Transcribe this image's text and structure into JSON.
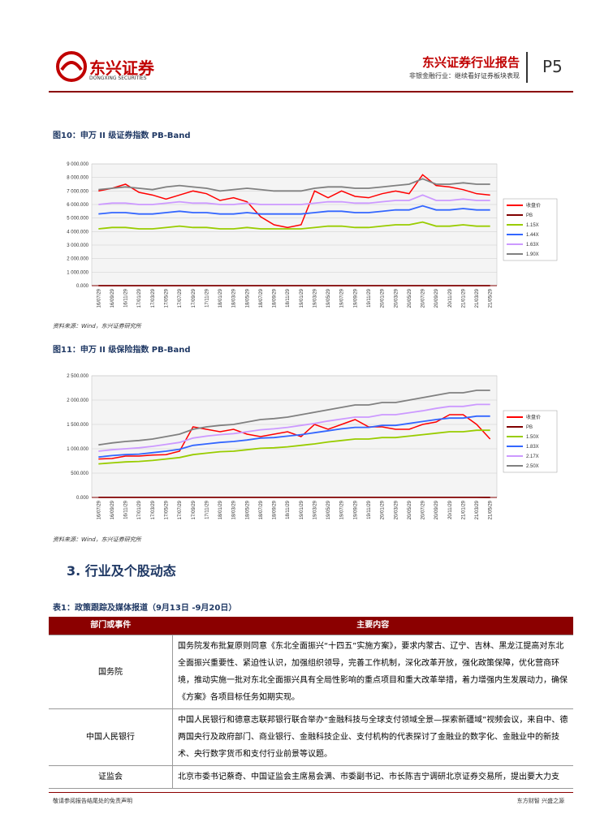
{
  "header": {
    "logo_cn": "东兴证券",
    "logo_en": "DONGXING SECURITIES",
    "title": "东兴证券行业报告",
    "subtitle": "非银金融行业：继续看好证券板块表现",
    "page": "P5"
  },
  "figures": [
    {
      "title": "图10：申万 II 级证券指数 PB-Band",
      "source": "资料来源：Wind，东兴证券研究所"
    },
    {
      "title": "图11：申万 II 级保险指数 PB-Band",
      "source": "资料来源：Wind，东兴证券研究所"
    }
  ],
  "section": "3. 行业及个股动态",
  "table": {
    "caption": "表1：政策跟踪及媒体报道（9月13日 -9月20日）",
    "columns": [
      "部门或事件",
      "主要内容"
    ],
    "rows": [
      [
        "国务院",
        "国务院发布批复原则同意《东北全面振兴“十四五”实施方案》，要求内蒙古、辽宁、吉林、黑龙江提高对东北全面振兴重要性、紧迫性认识，加强组织领导，完善工作机制，深化改革开放，强化政策保障，优化营商环境，推动实施一批对东北全面振兴具有全局性影响的重点项目和重大改革举措，着力增强内生发展动力，确保《方案》各项目标任务如期实现。"
      ],
      [
        "中国人民银行",
        "中国人民银行和德意志联邦银行联合举办“金融科技与全球支付领域全景—探索新疆域”视频会议，来自中、德两国央行及政府部门、商业银行、金融科技企业、支付机构的代表探讨了金融业的数字化、金融业中的新技术、央行数字货币和支付行业前景等议题。"
      ],
      [
        "证监会",
        "北京市委书记蔡奇、中国证监会主席易会满、市委副书记、市长陈吉宁调研北京证券交易所，提出要大力支"
      ]
    ]
  },
  "footer": {
    "left": "敬请参阅报告结尾处的免责声明",
    "right": "东方财智 兴盛之源"
  },
  "chart_data": [
    {
      "type": "line",
      "categories": [
        "16/07/29",
        "16/09/29",
        "16/11/29",
        "17/01/29",
        "17/03/29",
        "17/05/29",
        "17/07/29",
        "17/09/29",
        "17/11/29",
        "18/01/29",
        "18/03/29",
        "18/05/29",
        "18/07/29",
        "18/09/29",
        "18/11/29",
        "19/01/29",
        "19/03/29",
        "19/05/29",
        "19/07/29",
        "19/09/29",
        "19/11/29",
        "20/01/29",
        "20/03/29",
        "20/05/29",
        "20/07/29",
        "20/09/29",
        "20/11/29",
        "21/01/29",
        "21/03/29",
        "21/05/29"
      ],
      "ylim": [
        0,
        9000
      ],
      "yticks": [
        {
          "value": 0,
          "label": "0.000"
        },
        {
          "value": 1000,
          "label": "1 000.000"
        },
        {
          "value": 2000,
          "label": "2 000.000"
        },
        {
          "value": 3000,
          "label": "3 000.000"
        },
        {
          "value": 4000,
          "label": "4 000.000"
        },
        {
          "value": 5000,
          "label": "5 000.000"
        },
        {
          "value": 6000,
          "label": "6 000.000"
        },
        {
          "value": 7000,
          "label": "7 000.000"
        },
        {
          "value": 8000,
          "label": "8 000.000"
        },
        {
          "value": 9000,
          "label": "9 000.000"
        }
      ],
      "grid": true,
      "series": [
        {
          "name": "收盘价",
          "color": "#ff0000",
          "values": [
            7000,
            7200,
            7500,
            6900,
            6700,
            6400,
            6700,
            7000,
            6800,
            6300,
            6500,
            6200,
            5100,
            4500,
            4300,
            4500,
            7000,
            6500,
            7000,
            6600,
            6500,
            6800,
            7000,
            6800,
            8200,
            7400,
            7300,
            7100,
            6800,
            6700
          ]
        },
        {
          "name": "PB",
          "color": "#800000",
          "values": [
            1.6,
            1.6,
            1.7,
            1.6,
            1.5,
            1.5,
            1.6,
            1.6,
            1.5,
            1.4,
            1.5,
            1.4,
            1.2,
            1.1,
            1.1,
            1.1,
            1.6,
            1.5,
            1.6,
            1.5,
            1.5,
            1.5,
            1.6,
            1.5,
            1.9,
            1.7,
            1.6,
            1.6,
            1.5,
            1.5
          ]
        },
        {
          "name": "1.15X",
          "color": "#99cc00",
          "values": [
            4200,
            4300,
            4300,
            4200,
            4200,
            4300,
            4400,
            4300,
            4300,
            4200,
            4200,
            4300,
            4200,
            4200,
            4200,
            4200,
            4300,
            4400,
            4400,
            4300,
            4300,
            4400,
            4500,
            4500,
            4700,
            4400,
            4400,
            4500,
            4400,
            4400
          ]
        },
        {
          "name": "1.44X",
          "color": "#3366ff",
          "values": [
            5300,
            5400,
            5400,
            5300,
            5300,
            5400,
            5500,
            5400,
            5400,
            5300,
            5300,
            5400,
            5300,
            5300,
            5300,
            5300,
            5400,
            5500,
            5500,
            5400,
            5400,
            5500,
            5600,
            5600,
            5900,
            5600,
            5600,
            5700,
            5600,
            5600
          ]
        },
        {
          "name": "1.63X",
          "color": "#cc99ff",
          "values": [
            6000,
            6100,
            6100,
            6000,
            6000,
            6100,
            6200,
            6100,
            6100,
            6000,
            6000,
            6100,
            6000,
            6000,
            6000,
            6000,
            6100,
            6200,
            6200,
            6100,
            6100,
            6200,
            6300,
            6300,
            6700,
            6300,
            6300,
            6400,
            6300,
            6300
          ]
        },
        {
          "name": "1.90X",
          "color": "#808080",
          "values": [
            7100,
            7200,
            7300,
            7200,
            7100,
            7300,
            7400,
            7300,
            7200,
            7000,
            7100,
            7200,
            7100,
            7000,
            7000,
            7000,
            7200,
            7300,
            7300,
            7200,
            7200,
            7300,
            7400,
            7500,
            7900,
            7500,
            7500,
            7600,
            7500,
            7500
          ]
        }
      ]
    },
    {
      "type": "line",
      "categories": [
        "16/07/29",
        "16/09/29",
        "16/11/29",
        "17/01/29",
        "17/03/29",
        "17/05/29",
        "17/07/29",
        "17/09/29",
        "17/11/29",
        "18/01/29",
        "18/03/29",
        "18/05/29",
        "18/07/29",
        "18/09/29",
        "18/11/29",
        "19/01/29",
        "19/03/29",
        "19/05/29",
        "19/07/29",
        "19/09/29",
        "19/11/29",
        "20/01/29",
        "20/03/29",
        "20/05/29",
        "20/07/29",
        "20/09/29",
        "20/11/29",
        "21/01/29",
        "21/03/29",
        "21/05/29"
      ],
      "ylim": [
        0,
        2500
      ],
      "yticks": [
        {
          "value": 0,
          "label": "0.000"
        },
        {
          "value": 500,
          "label": "500.000"
        },
        {
          "value": 1000,
          "label": "1 000.000"
        },
        {
          "value": 1500,
          "label": "1 500.000"
        },
        {
          "value": 2000,
          "label": "2 000.000"
        },
        {
          "value": 2500,
          "label": "2 500.000"
        }
      ],
      "grid": true,
      "series": [
        {
          "name": "收盘价",
          "color": "#ff0000",
          "values": [
            790,
            800,
            850,
            850,
            870,
            880,
            950,
            1450,
            1400,
            1350,
            1400,
            1300,
            1250,
            1300,
            1350,
            1250,
            1500,
            1400,
            1500,
            1600,
            1450,
            1450,
            1400,
            1400,
            1500,
            1550,
            1700,
            1700,
            1500,
            1200
          ]
        },
        {
          "name": "PB",
          "color": "#800000",
          "values": [
            1.7,
            1.7,
            1.8,
            1.8,
            1.8,
            1.7,
            1.8,
            2.5,
            2.3,
            2.2,
            2.2,
            2.0,
            1.9,
            1.9,
            1.9,
            1.8,
            2.1,
            1.9,
            2.0,
            2.1,
            1.9,
            1.8,
            1.7,
            1.7,
            1.8,
            1.8,
            2.0,
            2.0,
            1.7,
            1.4
          ]
        },
        {
          "name": "1.50X",
          "color": "#99cc00",
          "values": [
            690,
            710,
            730,
            740,
            760,
            790,
            820,
            880,
            910,
            940,
            950,
            980,
            1010,
            1020,
            1040,
            1070,
            1100,
            1140,
            1170,
            1200,
            1200,
            1230,
            1230,
            1260,
            1290,
            1320,
            1350,
            1350,
            1380,
            1380
          ]
        },
        {
          "name": "1.83X",
          "color": "#3366ff",
          "values": [
            830,
            860,
            880,
            890,
            920,
            950,
            990,
            1070,
            1100,
            1130,
            1150,
            1180,
            1220,
            1230,
            1260,
            1290,
            1330,
            1370,
            1410,
            1440,
            1440,
            1480,
            1480,
            1520,
            1560,
            1600,
            1630,
            1630,
            1670,
            1670
          ]
        },
        {
          "name": "2.17X",
          "color": "#cc99ff",
          "values": [
            950,
            980,
            1000,
            1020,
            1050,
            1090,
            1130,
            1220,
            1260,
            1290,
            1310,
            1350,
            1390,
            1410,
            1440,
            1480,
            1520,
            1570,
            1610,
            1650,
            1650,
            1700,
            1700,
            1740,
            1780,
            1830,
            1870,
            1870,
            1910,
            1910
          ]
        },
        {
          "name": "2.50X",
          "color": "#808080",
          "values": [
            1080,
            1120,
            1150,
            1170,
            1200,
            1250,
            1300,
            1400,
            1450,
            1480,
            1500,
            1550,
            1600,
            1620,
            1650,
            1700,
            1750,
            1800,
            1850,
            1900,
            1900,
            1950,
            1950,
            2000,
            2050,
            2100,
            2150,
            2150,
            2200,
            2200
          ]
        }
      ]
    }
  ]
}
